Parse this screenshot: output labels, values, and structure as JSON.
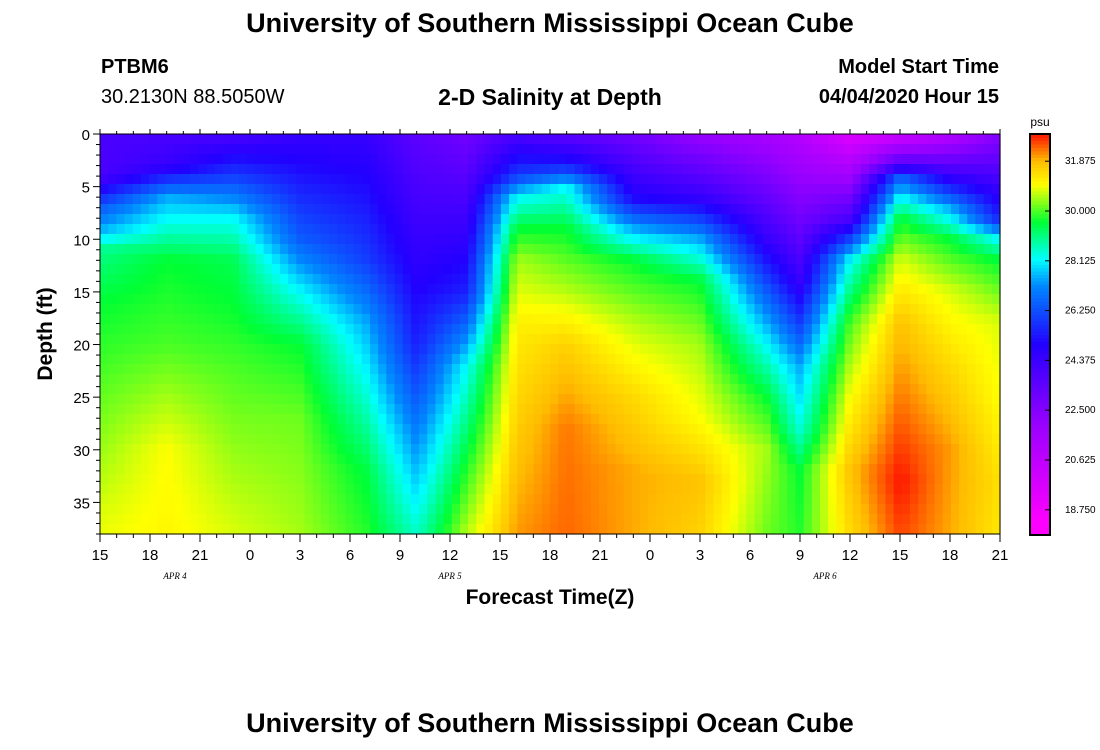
{
  "page": {
    "title_top": "University of Southern Mississippi Ocean Cube",
    "title_bottom": "University of Southern Mississippi Ocean Cube",
    "station_id": "PTBM6",
    "station_coords": "30.2130N 88.5050W",
    "plot_title": "2-D Salinity at Depth",
    "model_start_label": "Model Start Time",
    "model_start_value": "04/04/2020 Hour 15"
  },
  "chart_data": {
    "type": "heatmap",
    "title": "2-D Salinity at Depth",
    "xlabel": "Forecast Time(Z)",
    "ylabel": "Depth (ft)",
    "x_tick_labels": [
      "15",
      "18",
      "21",
      "0",
      "3",
      "6",
      "9",
      "12",
      "15",
      "18",
      "21",
      "0",
      "3",
      "6",
      "9",
      "12",
      "15",
      "18",
      "21"
    ],
    "x_hours": [
      0,
      54
    ],
    "date_labels": [
      {
        "label": "APR 4",
        "hour": 4.5
      },
      {
        "label": "APR 5",
        "hour": 21
      },
      {
        "label": "APR 6",
        "hour": 43.5
      }
    ],
    "y_ticks": [
      0,
      5,
      10,
      15,
      20,
      25,
      30,
      35
    ],
    "ylim": [
      0,
      38
    ],
    "y_inverted": true,
    "colorbar": {
      "unit": "psu",
      "min": 17.8,
      "max": 32.9,
      "tick_labels": [
        "31.875",
        "30.000",
        "28.125",
        "26.250",
        "24.375",
        "22.500",
        "20.625",
        "18.750"
      ],
      "tick_values": [
        31.875,
        30.0,
        28.125,
        26.25,
        24.375,
        22.5,
        20.625,
        18.75
      ],
      "stops": [
        {
          "v": 18.3,
          "color": "#ff00ff"
        },
        {
          "v": 22.0,
          "color": "#9900ff"
        },
        {
          "v": 25.0,
          "color": "#2200ff"
        },
        {
          "v": 27.2,
          "color": "#0088ff"
        },
        {
          "v": 28.2,
          "color": "#00ffff"
        },
        {
          "v": 29.6,
          "color": "#00ff33"
        },
        {
          "v": 31.0,
          "color": "#ffff00"
        },
        {
          "v": 31.9,
          "color": "#ffbb00"
        },
        {
          "v": 32.8,
          "color": "#ff2200"
        }
      ]
    },
    "columns": [
      {
        "hour": 0,
        "depth": [
          0,
          4,
          7,
          9,
          10,
          11,
          16,
          36,
          38
        ],
        "psu": [
          24.0,
          24.0,
          26.5,
          27.5,
          28.2,
          29.0,
          29.6,
          30.8,
          30.9
        ]
      },
      {
        "hour": 4,
        "depth": [
          0,
          3,
          5,
          6,
          8,
          12,
          20,
          30,
          38
        ],
        "psu": [
          24.0,
          24.5,
          26.5,
          27.5,
          28.2,
          29.6,
          30.0,
          31.0,
          31.1
        ]
      },
      {
        "hour": 8,
        "depth": [
          0,
          4,
          8,
          12,
          16,
          22,
          38
        ],
        "psu": [
          24.0,
          26.0,
          28.2,
          29.4,
          29.6,
          30.0,
          30.8
        ]
      },
      {
        "hour": 12,
        "depth": [
          0,
          10,
          15,
          20,
          27,
          38
        ],
        "psu": [
          24.5,
          26.5,
          28.2,
          29.6,
          30.2,
          30.5
        ]
      },
      {
        "hour": 16,
        "depth": [
          0,
          12,
          18,
          25,
          32,
          38
        ],
        "psu": [
          24.5,
          26.0,
          27.5,
          28.5,
          29.5,
          29.8
        ]
      },
      {
        "hour": 19,
        "depth": [
          0,
          20,
          28,
          38
        ],
        "psu": [
          23.5,
          25.5,
          27.0,
          28.6
        ]
      },
      {
        "hour": 22,
        "depth": [
          0,
          15,
          22,
          32,
          38
        ],
        "psu": [
          23.0,
          25.5,
          28.2,
          29.8,
          30.6
        ]
      },
      {
        "hour": 25,
        "depth": [
          0,
          4,
          6,
          9,
          12,
          18,
          38
        ],
        "psu": [
          24.0,
          26.0,
          28.2,
          29.6,
          30.5,
          31.2,
          32.1
        ]
      },
      {
        "hour": 28,
        "depth": [
          0,
          3,
          5,
          9,
          15,
          20,
          28,
          38
        ],
        "psu": [
          23.5,
          25.5,
          28.2,
          29.6,
          30.6,
          31.6,
          32.3,
          32.4
        ]
      },
      {
        "hour": 32,
        "depth": [
          0,
          6,
          9,
          12,
          18,
          25,
          32,
          38
        ],
        "psu": [
          23.0,
          25.0,
          27.5,
          29.6,
          30.6,
          31.5,
          32.0,
          32.0
        ]
      },
      {
        "hour": 36,
        "depth": [
          0,
          6,
          10,
          14,
          20,
          27,
          33,
          38
        ],
        "psu": [
          22.0,
          24.5,
          27.5,
          29.6,
          30.5,
          31.0,
          31.8,
          31.6
        ]
      },
      {
        "hour": 40,
        "depth": [
          0,
          10,
          15,
          20,
          25,
          30,
          38
        ],
        "psu": [
          21.5,
          24.5,
          26.5,
          28.2,
          29.6,
          30.5,
          30.2
        ]
      },
      {
        "hour": 42,
        "depth": [
          0,
          14,
          22,
          28,
          32,
          38
        ],
        "psu": [
          21.0,
          24.5,
          27.5,
          28.5,
          29.6,
          29.8
        ]
      },
      {
        "hour": 45,
        "depth": [
          0,
          8,
          12,
          18,
          25,
          32,
          38
        ],
        "psu": [
          19.5,
          24.0,
          28.2,
          30.0,
          31.0,
          31.8,
          31.5
        ]
      },
      {
        "hour": 48,
        "depth": [
          0,
          3,
          4,
          6,
          8,
          12,
          18,
          25,
          33,
          38
        ],
        "psu": [
          20.0,
          24.0,
          26.5,
          28.2,
          29.6,
          30.8,
          31.8,
          32.3,
          32.9,
          32.6
        ]
      },
      {
        "hour": 51,
        "depth": [
          0,
          4,
          7,
          10,
          15,
          22,
          30,
          38
        ],
        "psu": [
          21.0,
          24.5,
          27.5,
          29.6,
          30.8,
          31.5,
          32.1,
          32.0
        ]
      },
      {
        "hour": 54,
        "depth": [
          0,
          8,
          10,
          12,
          18,
          25,
          33,
          38
        ],
        "psu": [
          22.5,
          25.5,
          28.2,
          29.6,
          30.8,
          31.0,
          31.4,
          31.3
        ]
      }
    ]
  }
}
